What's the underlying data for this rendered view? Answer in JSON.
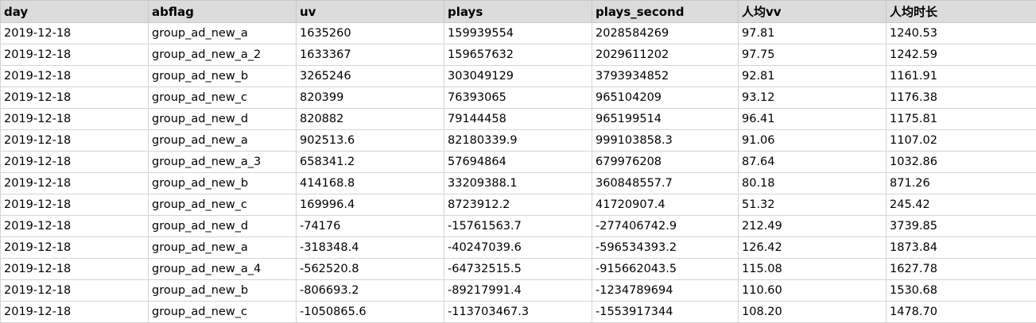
{
  "table": {
    "columns": [
      "day",
      "abflag",
      "uv",
      "plays",
      "plays_second",
      "人均vv",
      "人均时长"
    ],
    "rows": [
      [
        "2019-12-18",
        "group_ad_new_a",
        "1635260",
        "159939554",
        "2028584269",
        "97.81",
        "1240.53"
      ],
      [
        "2019-12-18",
        "group_ad_new_a_2",
        "1633367",
        "159657632",
        "2029611202",
        "97.75",
        "1242.59"
      ],
      [
        "2019-12-18",
        "group_ad_new_b",
        "3265246",
        "303049129",
        "3793934852",
        "92.81",
        "1161.91"
      ],
      [
        "2019-12-18",
        "group_ad_new_c",
        "820399",
        "76393065",
        "965104209",
        "93.12",
        "1176.38"
      ],
      [
        "2019-12-18",
        "group_ad_new_d",
        "820882",
        "79144458",
        "965199514",
        "96.41",
        "1175.81"
      ],
      [
        "2019-12-18",
        "group_ad_new_a",
        "902513.6",
        "82180339.9",
        "999103858.3",
        "91.06",
        "1107.02"
      ],
      [
        "2019-12-18",
        "group_ad_new_a_3",
        "658341.2",
        "57694864",
        "679976208",
        "87.64",
        "1032.86"
      ],
      [
        "2019-12-18",
        "group_ad_new_b",
        "414168.8",
        "33209388.1",
        "360848557.7",
        "80.18",
        "871.26"
      ],
      [
        "2019-12-18",
        "group_ad_new_c",
        "169996.4",
        "8723912.2",
        "41720907.4",
        "51.32",
        "245.42"
      ],
      [
        "2019-12-18",
        "group_ad_new_d",
        "-74176",
        "-15761563.7",
        "-277406742.9",
        "212.49",
        "3739.85"
      ],
      [
        "2019-12-18",
        "group_ad_new_a",
        "-318348.4",
        "-40247039.6",
        "-596534393.2",
        "126.42",
        "1873.84"
      ],
      [
        "2019-12-18",
        "group_ad_new_a_4",
        "-562520.8",
        "-64732515.5",
        "-915662043.5",
        "115.08",
        "1627.78"
      ],
      [
        "2019-12-18",
        "group_ad_new_b",
        "-806693.2",
        "-89217991.4",
        "-1234789694",
        "110.60",
        "1530.68"
      ],
      [
        "2019-12-18",
        "group_ad_new_c",
        "-1050865.6",
        "-113703467.3",
        "-1553917344",
        "108.20",
        "1478.70"
      ]
    ]
  }
}
